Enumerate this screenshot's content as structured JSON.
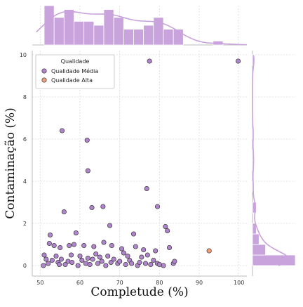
{
  "chart_data": {
    "type": "scatter",
    "subtype": "joint-plot-with-marginal-histograms-and-kde",
    "xlabel": "Completude (%)",
    "ylabel": "Contaminação (%)",
    "xlim": [
      48,
      102
    ],
    "ylim": [
      -0.5,
      10.2
    ],
    "xticks": [
      50,
      60,
      70,
      80,
      90,
      100
    ],
    "yticks": [
      0,
      2,
      4,
      6,
      8,
      10
    ],
    "grid": true,
    "legend": {
      "title": "Qualidade",
      "placement": "top-left",
      "entries": [
        "Qualidade Média",
        "Qualidade Alta"
      ]
    },
    "colors": {
      "Qualidade Média": "#b084cc",
      "Qualidade Alta": "#f0a07a",
      "hist_fill": "#c9a3dc",
      "kde_line": "#c9a3dc",
      "grid": "#dddddd"
    },
    "series": [
      {
        "name": "Qualidade Média",
        "points": [
          [
            99.8,
            9.7
          ],
          [
            77.5,
            9.7
          ],
          [
            55.5,
            6.4
          ],
          [
            61.8,
            5.95
          ],
          [
            62.0,
            4.5
          ],
          [
            76.8,
            3.65
          ],
          [
            56.0,
            2.55
          ],
          [
            63.0,
            2.75
          ],
          [
            65.8,
            2.8
          ],
          [
            79.5,
            2.8
          ],
          [
            52.5,
            1.45
          ],
          [
            52.3,
            1.05
          ],
          [
            53.5,
            0.95
          ],
          [
            59.0,
            1.55
          ],
          [
            67.5,
            1.9
          ],
          [
            73.5,
            1.5
          ],
          [
            81.5,
            1.85
          ],
          [
            82.0,
            1.65
          ],
          [
            82.5,
            0.85
          ],
          [
            55.0,
            0.85
          ],
          [
            57.3,
            0.95
          ],
          [
            58.5,
            1.0
          ],
          [
            61.0,
            0.95
          ],
          [
            63.5,
            0.9
          ],
          [
            66.0,
            1.1
          ],
          [
            68.0,
            0.95
          ],
          [
            70.5,
            0.8
          ],
          [
            74.0,
            0.9
          ],
          [
            76.0,
            0.75
          ],
          [
            79.0,
            0.7
          ],
          [
            57.8,
            0.5
          ],
          [
            60.0,
            0.45
          ],
          [
            64.0,
            0.55
          ],
          [
            67.0,
            0.45
          ],
          [
            71.0,
            0.6
          ],
          [
            75.5,
            0.4
          ],
          [
            77.0,
            0.5
          ],
          [
            51.0,
            0.5
          ],
          [
            51.5,
            0.3
          ],
          [
            52.0,
            0.1
          ],
          [
            53.0,
            0.25
          ],
          [
            54.0,
            0.45
          ],
          [
            54.5,
            0.15
          ],
          [
            55.3,
            0.3
          ],
          [
            56.3,
            0.05
          ],
          [
            57.0,
            0.2
          ],
          [
            58.0,
            0.15
          ],
          [
            59.5,
            0.0
          ],
          [
            60.5,
            0.25
          ],
          [
            61.5,
            0.1
          ],
          [
            62.5,
            0.05
          ],
          [
            63.2,
            0.3
          ],
          [
            64.5,
            0.1
          ],
          [
            65.5,
            0.2
          ],
          [
            66.5,
            0.0
          ],
          [
            67.8,
            0.15
          ],
          [
            68.5,
            0.3
          ],
          [
            69.5,
            0.1
          ],
          [
            70.0,
            0.2
          ],
          [
            71.5,
            0.05
          ],
          [
            72.5,
            0.25
          ],
          [
            73.0,
            0.1
          ],
          [
            74.5,
            0.0
          ],
          [
            75.0,
            0.15
          ],
          [
            76.5,
            0.1
          ],
          [
            77.8,
            0.05
          ],
          [
            78.5,
            0.25
          ],
          [
            79.5,
            0.1
          ],
          [
            81.0,
            0.0
          ],
          [
            83.5,
            0.1
          ],
          [
            83.8,
            0.2
          ],
          [
            50.8,
            0.0
          ],
          [
            54.8,
            0.05
          ],
          [
            62.0,
            0.35
          ],
          [
            65.0,
            0.4
          ],
          [
            72.0,
            0.45
          ],
          [
            80.0,
            0.05
          ]
        ]
      },
      {
        "name": "Qualidade Alta",
        "points": [
          [
            92.5,
            0.7
          ]
        ]
      }
    ],
    "marginal_x_histogram": {
      "bin_edges": [
        51,
        53.5,
        56,
        58.5,
        61,
        63.5,
        66,
        68.5,
        71,
        73.5,
        76,
        78.5,
        81,
        83.5,
        86,
        88.5,
        91,
        93.5,
        96,
        98.5,
        101
      ],
      "counts": [
        10,
        7,
        9,
        6,
        6,
        5,
        9,
        7,
        4,
        4,
        5,
        7,
        4,
        4,
        0,
        0,
        0,
        1,
        0,
        0
      ]
    },
    "marginal_y_histogram": {
      "bin_edges": [
        0,
        0.5,
        1.0,
        1.5,
        2.0,
        2.5,
        3.0,
        3.5,
        4.0,
        4.5,
        5.0,
        5.5,
        6.0,
        6.5,
        7.0,
        7.5,
        8.0,
        8.5,
        9.0,
        9.5,
        10.0
      ],
      "counts": [
        46,
        14,
        7,
        4,
        0,
        4,
        0,
        1,
        0,
        1,
        1,
        0,
        1,
        0,
        0,
        0,
        0,
        0,
        0,
        2
      ]
    }
  }
}
